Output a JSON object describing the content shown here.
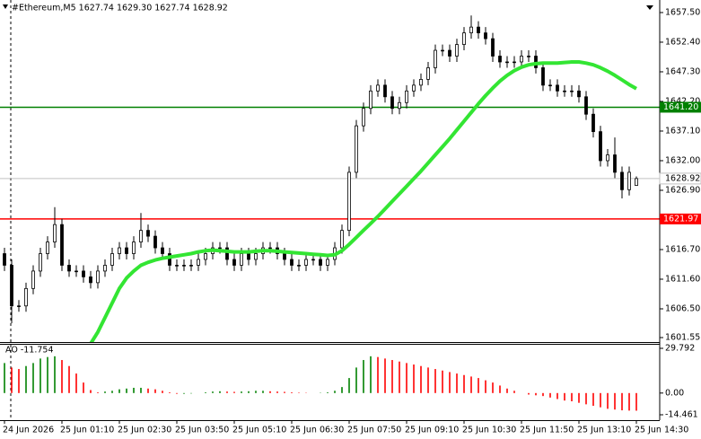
{
  "chart_data": [
    {
      "type": "candlestick",
      "title": "#Ethereum,M5  1627.74 1629.30 1627.74 1628.92",
      "open": [
        1616,
        1614,
        1607,
        1607,
        1610,
        1613,
        1616,
        1618,
        1621,
        1614,
        1613,
        1613,
        1612,
        1611,
        1613,
        1614,
        1616,
        1617,
        1616,
        1618,
        1620,
        1619,
        1617,
        1616,
        1614,
        1614,
        1614,
        1614,
        1615,
        1616,
        1617,
        1617,
        1615,
        1614,
        1616,
        1615,
        1616,
        1617,
        1617,
        1616,
        1615,
        1614,
        1614,
        1615,
        1615,
        1614,
        1615,
        1617,
        1620,
        1630,
        1638,
        1641,
        1644,
        1645,
        1643,
        1641,
        1642,
        1644,
        1645,
        1646,
        1648,
        1651,
        1651,
        1650,
        1652,
        1654,
        1655,
        1654,
        1653,
        1650,
        1649,
        1649,
        1649,
        1650,
        1650,
        1648,
        1645,
        1645,
        1644,
        1644,
        1644,
        1643,
        1640,
        1637,
        1632,
        1633,
        1630,
        1627,
        1627.74
      ],
      "high": [
        1617,
        1615,
        1608,
        1611,
        1614,
        1617,
        1619,
        1624,
        1622,
        1615,
        1614,
        1614,
        1613,
        1614,
        1615,
        1617,
        1618,
        1618,
        1619,
        1623,
        1621,
        1620,
        1618,
        1617,
        1615,
        1615,
        1615,
        1616,
        1617,
        1618,
        1618,
        1618,
        1616,
        1617,
        1617,
        1617,
        1618,
        1618,
        1618,
        1617,
        1616,
        1615,
        1616,
        1616,
        1616,
        1616,
        1618,
        1621,
        1631,
        1639,
        1642,
        1645,
        1646,
        1646,
        1644,
        1643,
        1645,
        1646,
        1647,
        1649,
        1652,
        1652,
        1652,
        1653,
        1655,
        1657,
        1656,
        1655,
        1654,
        1651,
        1650,
        1650,
        1651,
        1651,
        1651,
        1649,
        1646,
        1646,
        1645,
        1645,
        1645,
        1644,
        1641,
        1638,
        1634,
        1636,
        1631,
        1631,
        1629.3
      ],
      "low": [
        1613,
        1604,
        1606,
        1606,
        1609,
        1612,
        1615,
        1617,
        1613,
        1612,
        1612,
        1611,
        1610,
        1610,
        1612,
        1613,
        1615,
        1615,
        1615,
        1617,
        1618,
        1616,
        1615,
        1613,
        1613,
        1613,
        1613,
        1613,
        1614,
        1615,
        1616,
        1614,
        1613,
        1613,
        1614,
        1614,
        1615,
        1616,
        1615,
        1614,
        1613,
        1613,
        1613,
        1614,
        1613,
        1613,
        1614,
        1616,
        1619,
        1629,
        1637,
        1640,
        1643,
        1642,
        1640,
        1640,
        1641,
        1643,
        1644,
        1645,
        1647,
        1650,
        1649,
        1649,
        1651,
        1653,
        1653,
        1652,
        1649,
        1648,
        1648,
        1648,
        1648,
        1649,
        1647,
        1644,
        1644,
        1643,
        1643,
        1643,
        1642,
        1639,
        1636,
        1631,
        1631,
        1629,
        1625.5,
        1626,
        1627.74
      ],
      "close": [
        1614,
        1607,
        1607,
        1610,
        1613,
        1616,
        1618,
        1621,
        1614,
        1613,
        1613,
        1612,
        1611,
        1613,
        1614,
        1616,
        1617,
        1616,
        1618,
        1620,
        1619,
        1617,
        1616,
        1614,
        1614,
        1614,
        1614,
        1615,
        1616,
        1617,
        1617,
        1615,
        1614,
        1616,
        1615,
        1616,
        1617,
        1617,
        1616,
        1615,
        1614,
        1614,
        1615,
        1615,
        1614,
        1615,
        1617,
        1620,
        1630,
        1638,
        1641,
        1644,
        1645,
        1643,
        1641,
        1642,
        1644,
        1645,
        1646,
        1648,
        1651,
        1651,
        1650,
        1652,
        1654,
        1655,
        1654,
        1653,
        1650,
        1649,
        1649,
        1649,
        1650,
        1650,
        1648,
        1645,
        1645,
        1644,
        1644,
        1644,
        1643,
        1640,
        1637,
        1632,
        1633,
        1630,
        1627,
        1630,
        1628.92
      ],
      "up_color": "#ffffff",
      "down_color": "#000000",
      "outline_color": "#000000",
      "lines": [
        {
          "color": "#33e533",
          "values": [
            null,
            null,
            null,
            null,
            null,
            null,
            null,
            null,
            null,
            null,
            null,
            null,
            1600.5,
            1602.5,
            1605,
            1607.5,
            1610,
            1611.8,
            1613,
            1614,
            1614.5,
            1614.9,
            1615.2,
            1615.4,
            1615.6,
            1615.8,
            1616,
            1616.3,
            1616.5,
            1616.6,
            1616.5,
            1616.4,
            1616.3,
            1616.3,
            1616.3,
            1616.4,
            1616.5,
            1616.5,
            1616.4,
            1616.3,
            1616.2,
            1616.1,
            1616,
            1615.9,
            1615.8,
            1615.7,
            1615.8,
            1616.5,
            1617.6,
            1618.8,
            1620,
            1621.2,
            1622.4,
            1623.7,
            1625,
            1626.3,
            1627.6,
            1628.9,
            1630.2,
            1631.6,
            1633,
            1634.4,
            1635.8,
            1637.3,
            1638.8,
            1640.3,
            1641.8,
            1643.2,
            1644.5,
            1645.7,
            1646.7,
            1647.5,
            1648.1,
            1648.5,
            1648.7,
            1648.8,
            1648.8,
            1648.8,
            1648.9,
            1649,
            1649,
            1648.8,
            1648.5,
            1648,
            1647.4,
            1646.7,
            1645.9,
            1645.1,
            1644.4
          ]
        }
      ],
      "hlines": [
        {
          "value": 1641.2,
          "label": "1641.20",
          "color": "#008000"
        },
        {
          "value": 1621.97,
          "label": "1621.97",
          "color": "#ff0000"
        }
      ],
      "current": {
        "value": 1628.92,
        "label": "1628.92",
        "color": "#c0c0c0"
      },
      "ylim": [
        1600.78,
        1659.66
      ],
      "yticks": [
        {
          "value": 1657.5,
          "label": "1657.50"
        },
        {
          "value": 1652.4,
          "label": "1652.40"
        },
        {
          "value": 1647.3,
          "label": "1647.30"
        },
        {
          "value": 1642.2,
          "label": "1642.20"
        },
        {
          "value": 1637.1,
          "label": "1637.10"
        },
        {
          "value": 1632,
          "label": "1632.00"
        },
        {
          "value": 1626.9,
          "label": "1626.90"
        },
        {
          "value": 1616.7,
          "label": "1616.70"
        },
        {
          "value": 1611.6,
          "label": "1611.60"
        },
        {
          "value": 1606.5,
          "label": "1606.50"
        },
        1601.55
      ],
      "xlim": [
        -0.625,
        91.25
      ],
      "xticks": [
        {
          "value": 0,
          "label": "24 Jun 2026"
        },
        {
          "value": 8,
          "label": "25 Jun 01:10"
        },
        {
          "value": 16,
          "label": "25 Jun 02:30"
        },
        {
          "value": 24,
          "label": "25 Jun 03:50"
        },
        {
          "value": 32,
          "label": "25 Jun 05:10"
        },
        {
          "value": 40,
          "label": "25 Jun 06:30"
        },
        {
          "value": 48,
          "label": "25 Jun 07:50"
        },
        {
          "value": 56,
          "label": "25 Jun 09:10"
        },
        {
          "value": 64,
          "label": "25 Jun 10:30"
        },
        {
          "value": 72,
          "label": "25 Jun 11:50"
        },
        {
          "value": 80,
          "label": "25 Jun 13:10"
        },
        {
          "value": 88,
          "label": "25 Jun 14:30"
        }
      ]
    },
    {
      "type": "bar",
      "title": "AO -11.754",
      "values": [
        20,
        17,
        16,
        18,
        20,
        23,
        24,
        24.5,
        22,
        18,
        13,
        7,
        2,
        0.5,
        1,
        1.5,
        2.5,
        3,
        3.5,
        3.5,
        3,
        2.5,
        1.5,
        0.5,
        -0.5,
        -0.5,
        -0.3,
        0,
        0.5,
        1,
        1.2,
        1,
        0.8,
        1,
        1.2,
        1.5,
        1.5,
        1.2,
        1,
        0.8,
        0.5,
        0.3,
        0.2,
        0,
        0.2,
        0.5,
        1.5,
        4,
        10,
        17,
        22,
        24.5,
        24,
        23,
        22,
        21,
        20,
        19,
        18,
        17,
        16,
        15,
        14,
        13,
        12,
        11,
        10,
        8.5,
        7,
        5,
        3,
        1.5,
        0,
        -1,
        -1.5,
        -2,
        -3,
        -4,
        -5,
        -5.5,
        -6.5,
        -7.5,
        -8.5,
        -9.5,
        -10.5,
        -11,
        -11.5,
        -11.7,
        -11.754
      ],
      "up_color": "#008000",
      "down_color": "#ff0000",
      "ylim": [
        -18.05,
        32.78
      ],
      "yticks": [
        29.792,
        {
          "value": 0,
          "label": "0.00"
        },
        -14.461
      ]
    }
  ]
}
